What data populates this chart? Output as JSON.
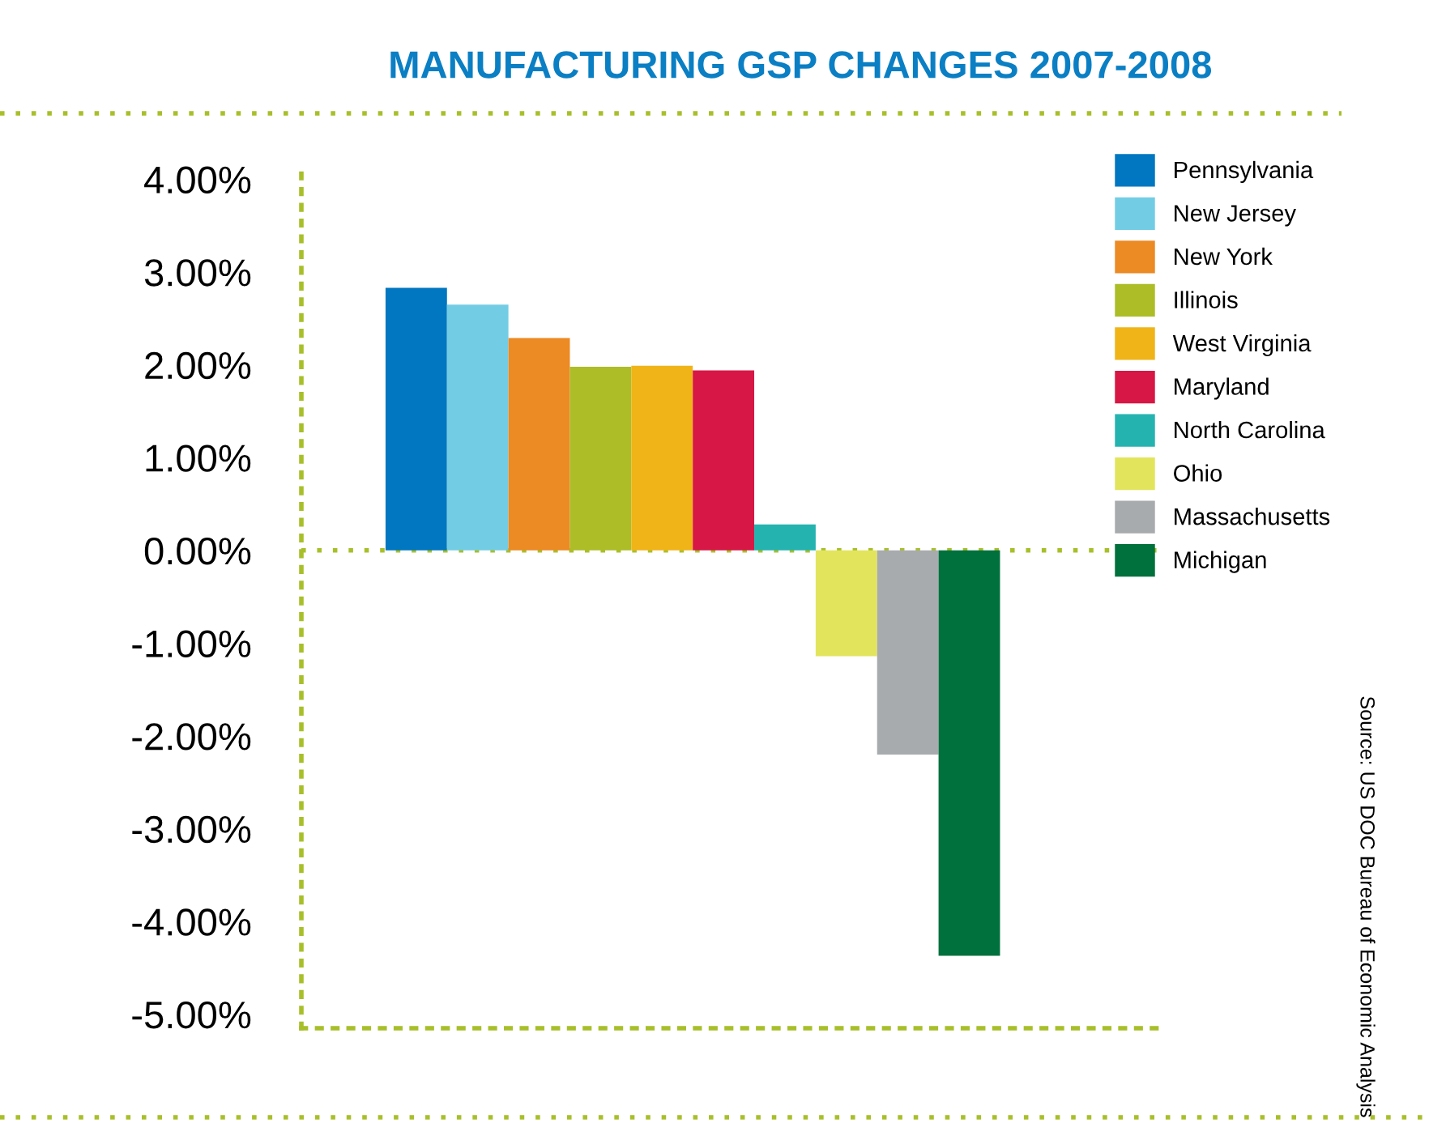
{
  "chart_data": {
    "type": "bar",
    "title": "MANUFACTURING GSP CHANGES 2007-2008",
    "categories": [
      null
    ],
    "series": [
      {
        "name": "Pennsylvania",
        "color": "#0077c0",
        "values": [
          2.83
        ]
      },
      {
        "name": "New Jersey",
        "color": "#72cde4",
        "values": [
          2.65
        ]
      },
      {
        "name": "New York",
        "color": "#ec8a24",
        "values": [
          2.29
        ]
      },
      {
        "name": "Illinois",
        "color": "#acbd27",
        "values": [
          1.98
        ]
      },
      {
        "name": "West Virginia",
        "color": "#f0b418",
        "values": [
          1.99
        ]
      },
      {
        "name": "Maryland",
        "color": "#d71745",
        "values": [
          1.94
        ]
      },
      {
        "name": "North Carolina",
        "color": "#25b3b0",
        "values": [
          0.28
        ]
      },
      {
        "name": "Ohio",
        "color": "#e2e55c",
        "values": [
          -1.14
        ]
      },
      {
        "name": "Massachusetts",
        "color": "#a8abae",
        "values": [
          -2.2
        ]
      },
      {
        "name": "Michigan",
        "color": "#00703c",
        "values": [
          -4.37
        ]
      }
    ],
    "ylim": [
      -5.15,
      4.1
    ],
    "yticks": [
      {
        "value": -5,
        "label": "-5.00%"
      },
      {
        "value": -4,
        "label": "-4.00%"
      },
      {
        "value": -3,
        "label": "-3.00%"
      },
      {
        "value": -2,
        "label": "-2.00%"
      },
      {
        "value": -1,
        "label": "-1.00%"
      },
      {
        "value": 0,
        "label": "0.00%"
      },
      {
        "value": 1,
        "label": "1.00%"
      },
      {
        "value": 2,
        "label": "2.00%"
      },
      {
        "value": 3,
        "label": "3.00%"
      },
      {
        "value": 4,
        "label": "4.00%"
      }
    ],
    "ref_lines": [
      {
        "axis": "y",
        "value": 0,
        "color": "#a8bf2a",
        "line_style": "dotted"
      }
    ],
    "annotations": [
      "Source: US DOC Bureau of Economic Analysis"
    ],
    "legend": "top right",
    "grid": false
  }
}
